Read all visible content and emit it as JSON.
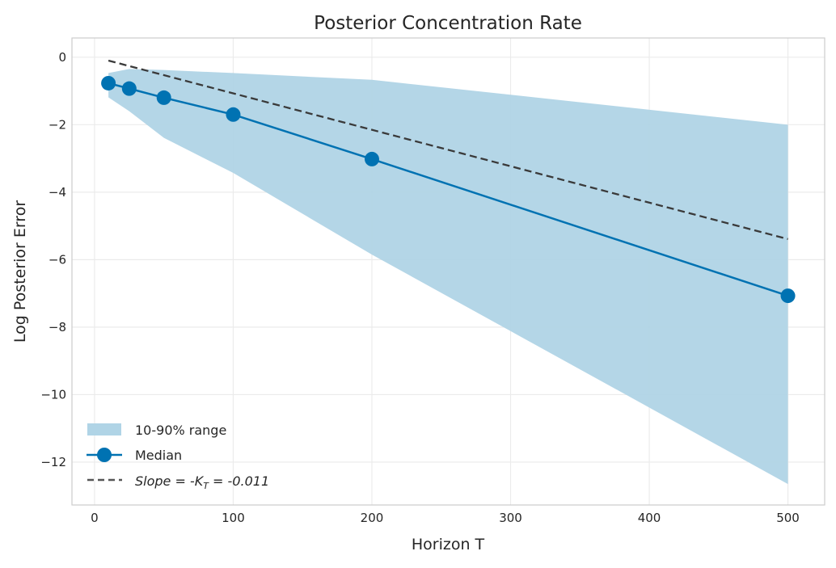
{
  "chart_data": {
    "type": "line",
    "title": "Posterior Concentration Rate",
    "xlabel": "Horizon T",
    "ylabel": "Log Posterior Error",
    "xlim": [
      -16.3,
      526.5
    ],
    "ylim": [
      -13.27,
      0.57
    ],
    "xticks": [
      0,
      100,
      200,
      300,
      400,
      500
    ],
    "yticks": [
      0,
      -2,
      -4,
      -6,
      -8,
      -10,
      -12
    ],
    "ytick_labels": [
      "0",
      "−2",
      "−4",
      "−6",
      "−8",
      "−10",
      "−12"
    ],
    "grid": true,
    "legend_position": "bottom-left",
    "x": [
      10,
      25,
      50,
      100,
      200,
      500
    ],
    "band": {
      "name": "10-90% range",
      "upper": [
        -0.47,
        -0.35,
        -0.38,
        -0.47,
        -0.67,
        -2.0
      ],
      "lower": [
        -1.19,
        -1.6,
        -2.39,
        -3.43,
        -5.85,
        -12.65
      ],
      "color": "#b0d4e6"
    },
    "median": {
      "name": "Median",
      "values": [
        -0.77,
        -0.93,
        -1.2,
        -1.7,
        -3.02,
        -7.07
      ],
      "color": "#0072b2"
    },
    "slope_line": {
      "name_prefix": "Slope = -K",
      "name_sub": "T",
      "name_suffix": " = -0.011",
      "x": [
        10,
        500
      ],
      "values": [
        -0.1,
        -5.39
      ],
      "color": "#3a3a3a"
    }
  }
}
